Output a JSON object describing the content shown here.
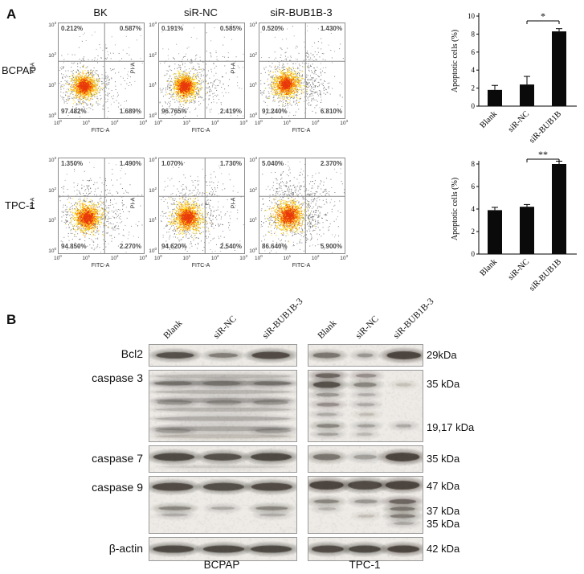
{
  "figure": {
    "panel_a": {
      "label": "A",
      "columns": [
        "BK",
        "siR-NC",
        "siR-BUB1B-3"
      ],
      "rows": [
        "BCPAP",
        "TPC-1"
      ],
      "axis": {
        "x": "FITC-A",
        "y": "PI-A",
        "xticks": [
          "0",
          "1",
          "2",
          "3"
        ],
        "yticks": [
          "3",
          "2",
          "1",
          "0"
        ]
      },
      "plots": [
        {
          "row": "BCPAP",
          "col": "BK",
          "ul": "0.212%",
          "ur": "0.587%",
          "ll": "97.482%",
          "lr": "1.689%"
        },
        {
          "row": "BCPAP",
          "col": "siR-NC",
          "ul": "0.191%",
          "ur": "0.585%",
          "ll": "96.765%",
          "lr": "2.419%"
        },
        {
          "row": "BCPAP",
          "col": "siR-BUB1B-3",
          "ul": "0.520%",
          "ur": "1.430%",
          "ll": "91.240%",
          "lr": "6.810%"
        },
        {
          "row": "TPC-1",
          "col": "BK",
          "ul": "1.350%",
          "ur": "1.490%",
          "ll": "94.850%",
          "lr": "2.270%"
        },
        {
          "row": "TPC-1",
          "col": "siR-NC",
          "ul": "1.070%",
          "ur": "1.730%",
          "ll": "94.620%",
          "lr": "2.540%"
        },
        {
          "row": "TPC-1",
          "col": "siR-BUB1B-3",
          "ul": "5.040%",
          "ur": "2.370%",
          "ll": "86.640%",
          "lr": "5.900%"
        }
      ]
    },
    "panel_b": {
      "label": "B",
      "lanes": [
        "Blank",
        "siR-NC",
        "siR-BUB1B-3"
      ],
      "groups": [
        "BCPAP",
        "TPC-1"
      ],
      "blots": [
        {
          "protein": "Bcl2"
        },
        {
          "protein": "caspase 3"
        },
        {
          "protein": "caspase 7"
        },
        {
          "protein": "caspase 9"
        },
        {
          "protein": "β-actin"
        }
      ],
      "kda_labels": [
        "29kDa",
        "35 kDa",
        "19,17 kDa",
        "35 kDa",
        "47 kDa",
        "37 kDa",
        "35 kDa",
        "42 kDa"
      ]
    }
  },
  "chart_data": [
    {
      "type": "bar",
      "title": "BCPAP apoptosis",
      "ylabel": "Apoptotic cells (%)",
      "categories": [
        "Blank",
        "siR-NC",
        "siR-BUB1B"
      ],
      "values": [
        1.8,
        2.4,
        8.3
      ],
      "errors": [
        0.5,
        0.9,
        0.3
      ],
      "ylim": [
        0,
        10
      ],
      "yticks": [
        0,
        2,
        4,
        6,
        8,
        10
      ],
      "significance": {
        "from": 1,
        "to": 2,
        "label": "*"
      },
      "bar_color": "#0a0a0a"
    },
    {
      "type": "bar",
      "title": "TPC-1 apoptosis",
      "ylabel": "Apoptotic cells (%)",
      "categories": [
        "Blank",
        "siR-NC",
        "siR-BUB1B"
      ],
      "values": [
        3.9,
        4.2,
        8.0
      ],
      "errors": [
        0.25,
        0.2,
        0.25
      ],
      "ylim": [
        0,
        8
      ],
      "yticks": [
        0,
        2,
        4,
        6,
        8
      ],
      "significance": {
        "from": 1,
        "to": 2,
        "label": "**"
      },
      "bar_color": "#0a0a0a"
    }
  ]
}
